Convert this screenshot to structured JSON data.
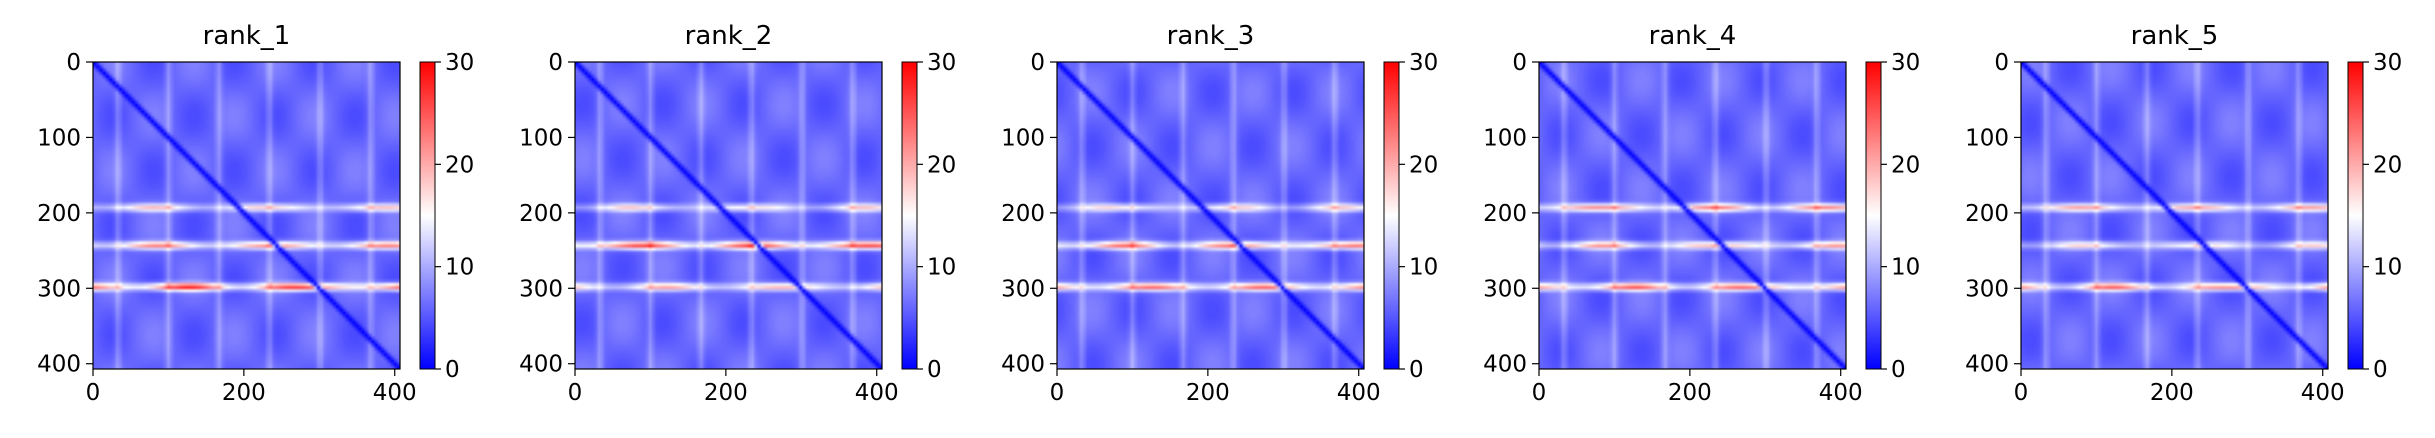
{
  "chart_data": [
    {
      "type": "heatmap",
      "title": "rank_1",
      "x_ticks": [
        "0",
        "200",
        "400"
      ],
      "y_ticks": [
        "0",
        "100",
        "200",
        "300",
        "400"
      ],
      "xlim": [
        0,
        407
      ],
      "ylim": [
        407,
        0
      ],
      "matrix_size": 407,
      "color_scale": {
        "min": 0,
        "max": 30,
        "ticks": [
          "0",
          "10",
          "20",
          "30"
        ],
        "colormap": "bwr"
      },
      "features": {
        "diagonal_value": 0,
        "background_value": 6,
        "horizontal_bands": [
          {
            "y": 193,
            "value": 18
          },
          {
            "y": 243,
            "value": 22
          },
          {
            "y": 298,
            "value": 27
          }
        ]
      }
    },
    {
      "type": "heatmap",
      "title": "rank_2",
      "x_ticks": [
        "0",
        "200",
        "400"
      ],
      "y_ticks": [
        "0",
        "100",
        "200",
        "300",
        "400"
      ],
      "xlim": [
        0,
        407
      ],
      "ylim": [
        407,
        0
      ],
      "matrix_size": 407,
      "color_scale": {
        "min": 0,
        "max": 30,
        "ticks": [
          "0",
          "10",
          "20",
          "30"
        ],
        "colormap": "bwr"
      },
      "features": {
        "diagonal_value": 0,
        "background_value": 6,
        "horizontal_bands": [
          {
            "y": 193,
            "value": 17
          },
          {
            "y": 243,
            "value": 26
          },
          {
            "y": 298,
            "value": 20
          }
        ]
      }
    },
    {
      "type": "heatmap",
      "title": "rank_3",
      "x_ticks": [
        "0",
        "200",
        "400"
      ],
      "y_ticks": [
        "0",
        "100",
        "200",
        "300",
        "400"
      ],
      "xlim": [
        0,
        407
      ],
      "ylim": [
        407,
        0
      ],
      "matrix_size": 407,
      "color_scale": {
        "min": 0,
        "max": 30,
        "ticks": [
          "0",
          "10",
          "20",
          "30"
        ],
        "colormap": "bwr"
      },
      "features": {
        "diagonal_value": 0,
        "background_value": 6,
        "horizontal_bands": [
          {
            "y": 193,
            "value": 17
          },
          {
            "y": 243,
            "value": 23
          },
          {
            "y": 298,
            "value": 24
          }
        ]
      }
    },
    {
      "type": "heatmap",
      "title": "rank_4",
      "x_ticks": [
        "0",
        "200",
        "400"
      ],
      "y_ticks": [
        "0",
        "100",
        "200",
        "300",
        "400"
      ],
      "xlim": [
        0,
        407
      ],
      "ylim": [
        407,
        0
      ],
      "matrix_size": 407,
      "color_scale": {
        "min": 0,
        "max": 30,
        "ticks": [
          "0",
          "10",
          "20",
          "30"
        ],
        "colormap": "bwr"
      },
      "features": {
        "diagonal_value": 0,
        "background_value": 6,
        "horizontal_bands": [
          {
            "y": 193,
            "value": 22
          },
          {
            "y": 243,
            "value": 20
          },
          {
            "y": 298,
            "value": 24
          }
        ]
      }
    },
    {
      "type": "heatmap",
      "title": "rank_5",
      "x_ticks": [
        "0",
        "200",
        "400"
      ],
      "y_ticks": [
        "0",
        "100",
        "200",
        "300",
        "400"
      ],
      "xlim": [
        0,
        407
      ],
      "ylim": [
        407,
        0
      ],
      "matrix_size": 407,
      "color_scale": {
        "min": 0,
        "max": 30,
        "ticks": [
          "0",
          "10",
          "20",
          "30"
        ],
        "colormap": "bwr"
      },
      "features": {
        "diagonal_value": 0,
        "background_value": 6,
        "horizontal_bands": [
          {
            "y": 193,
            "value": 20
          },
          {
            "y": 243,
            "value": 17
          },
          {
            "y": 298,
            "value": 23
          }
        ]
      }
    }
  ]
}
